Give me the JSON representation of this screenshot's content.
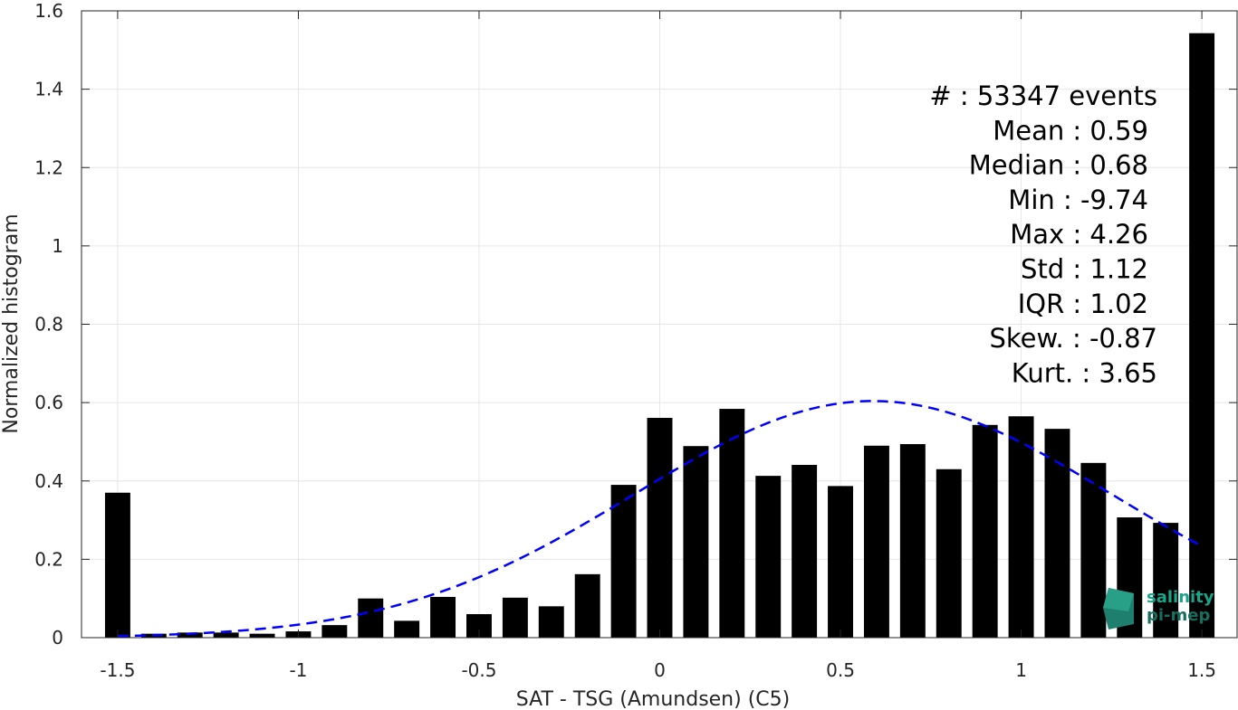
{
  "chart_data": {
    "type": "bar",
    "title": "",
    "xlabel": "SAT - TSG (Amundsen) (C5)",
    "ylabel": "Normalized histogram",
    "xlim": [
      -1.6,
      1.6
    ],
    "ylim": [
      0,
      1.6
    ],
    "xticks": [
      -1.5,
      -1,
      -0.5,
      0,
      0.5,
      1,
      1.5
    ],
    "xtick_labels": [
      "-1.5",
      "-1",
      "-0.5",
      "0",
      "0.5",
      "1",
      "1.5"
    ],
    "yticks": [
      0,
      0.2,
      0.4,
      0.6,
      0.8,
      1,
      1.2,
      1.4,
      1.6
    ],
    "ytick_labels": [
      "0",
      "0.2",
      "0.4",
      "0.6",
      "0.8",
      "1",
      "1.2",
      "1.4",
      "1.6"
    ],
    "grid": true,
    "bar_color": "#000000",
    "bar_width": 0.07,
    "bins": [
      -1.5,
      -1.4,
      -1.3,
      -1.2,
      -1.1,
      -1.0,
      -0.9,
      -0.8,
      -0.7,
      -0.6,
      -0.5,
      -0.4,
      -0.3,
      -0.2,
      -0.1,
      0.0,
      0.1,
      0.2,
      0.3,
      0.4,
      0.5,
      0.6,
      0.7,
      0.8,
      0.9,
      1.0,
      1.1,
      1.2,
      1.3,
      1.4,
      1.5
    ],
    "values": [
      0.37,
      0.01,
      0.013,
      0.013,
      0.01,
      0.016,
      0.032,
      0.1,
      0.043,
      0.104,
      0.06,
      0.102,
      0.08,
      0.162,
      0.39,
      0.561,
      0.489,
      0.584,
      0.413,
      0.441,
      0.387,
      0.49,
      0.494,
      0.43,
      0.543,
      0.565,
      0.533,
      0.446,
      0.307,
      0.293,
      1.543
    ],
    "fit_curve": {
      "style": "dashed",
      "color": "#0000ff",
      "mean": 0.59,
      "std": 0.66,
      "peak": 0.604,
      "x_range": [
        -1.5,
        1.5
      ]
    },
    "stats": [
      "#  : 53347 events",
      "Mean : 0.59",
      "Median : 0.68",
      "Min : -9.74",
      "Max : 4.26",
      "Std : 1.12",
      "IQR : 1.02",
      "Skew. : -0.87",
      "Kurt. : 3.65"
    ]
  },
  "logo": {
    "line1": "salinity",
    "line2": "pi-mep",
    "color": "#1aa58a"
  }
}
